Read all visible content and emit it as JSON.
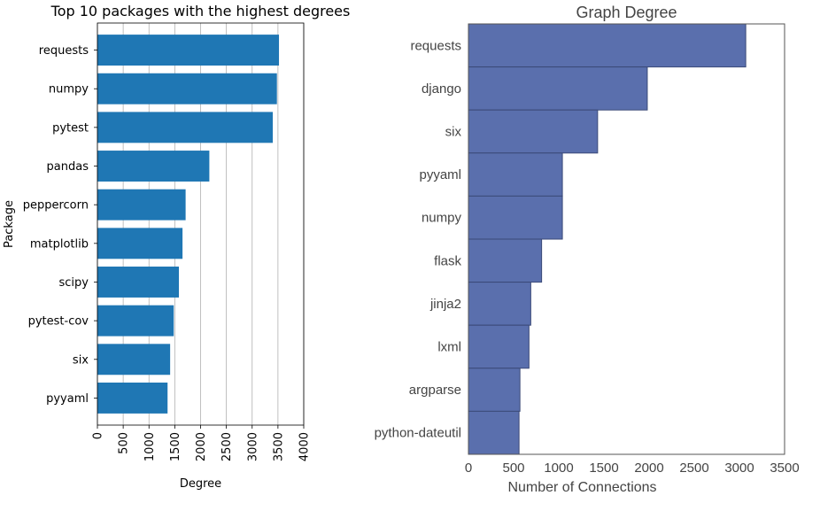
{
  "chart_data": [
    {
      "type": "bar",
      "orientation": "horizontal",
      "title": "Top 10 packages with the highest degrees",
      "xlabel": "Degree",
      "ylabel": "Package",
      "categories": [
        "requests",
        "numpy",
        "pytest",
        "pandas",
        "peppercorn",
        "matplotlib",
        "scipy",
        "pytest-cov",
        "six",
        "pyyaml"
      ],
      "values": [
        3520,
        3480,
        3400,
        2170,
        1710,
        1650,
        1580,
        1480,
        1410,
        1360
      ],
      "xlim": [
        0,
        4000
      ],
      "xticks": [
        "0",
        "500",
        "1000",
        "1500",
        "2000",
        "2500",
        "3000",
        "3500",
        "4000"
      ],
      "grid": "vertical",
      "color": "#1f77b4"
    },
    {
      "type": "bar",
      "orientation": "horizontal",
      "title": "Graph Degree",
      "xlabel": "Number of Connections",
      "ylabel": "",
      "categories": [
        "requests",
        "django",
        "six",
        "pyyaml",
        "numpy",
        "flask",
        "jinja2",
        "lxml",
        "argparse",
        "python-dateutil"
      ],
      "values": [
        3070,
        1980,
        1430,
        1040,
        1040,
        810,
        690,
        670,
        570,
        560
      ],
      "xlim": [
        0,
        3500
      ],
      "xticks": [
        "0",
        "500",
        "1000",
        "1500",
        "2000",
        "2500",
        "3000",
        "3500"
      ],
      "grid": "none",
      "color": "#5a6fad"
    }
  ]
}
